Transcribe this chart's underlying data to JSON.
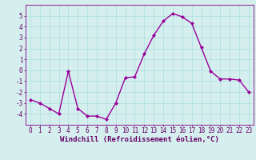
{
  "x": [
    0,
    1,
    2,
    3,
    4,
    5,
    6,
    7,
    8,
    9,
    10,
    11,
    12,
    13,
    14,
    15,
    16,
    17,
    18,
    19,
    20,
    21,
    22,
    23
  ],
  "y": [
    -2.7,
    -3.0,
    -3.5,
    -4.0,
    -0.1,
    -3.5,
    -4.2,
    -4.2,
    -4.5,
    -3.0,
    -0.7,
    -0.6,
    1.5,
    3.2,
    4.5,
    5.2,
    4.9,
    4.3,
    2.1,
    -0.1,
    -0.8,
    -0.8,
    -0.9,
    -2.0
  ],
  "line_color": "#990099",
  "marker": "D",
  "marker_size": 2.0,
  "line_width": 1.0,
  "bg_color": "#d5efef",
  "grid_color": "#aadddd",
  "xlabel": "Windchill (Refroidissement éolien,°C)",
  "xlabel_color": "#660066",
  "tick_color": "#660066",
  "xlim": [
    -0.5,
    23.5
  ],
  "ylim": [
    -5.0,
    6.0
  ],
  "yticks": [
    -4,
    -3,
    -2,
    -1,
    0,
    1,
    2,
    3,
    4,
    5
  ],
  "xticks": [
    0,
    1,
    2,
    3,
    4,
    5,
    6,
    7,
    8,
    9,
    10,
    11,
    12,
    13,
    14,
    15,
    16,
    17,
    18,
    19,
    20,
    21,
    22,
    23
  ],
  "spine_color": "#993399",
  "tick_font_size": 5.5,
  "xlabel_font_size": 6.5,
  "fig_width": 3.2,
  "fig_height": 2.0,
  "dpi": 100
}
